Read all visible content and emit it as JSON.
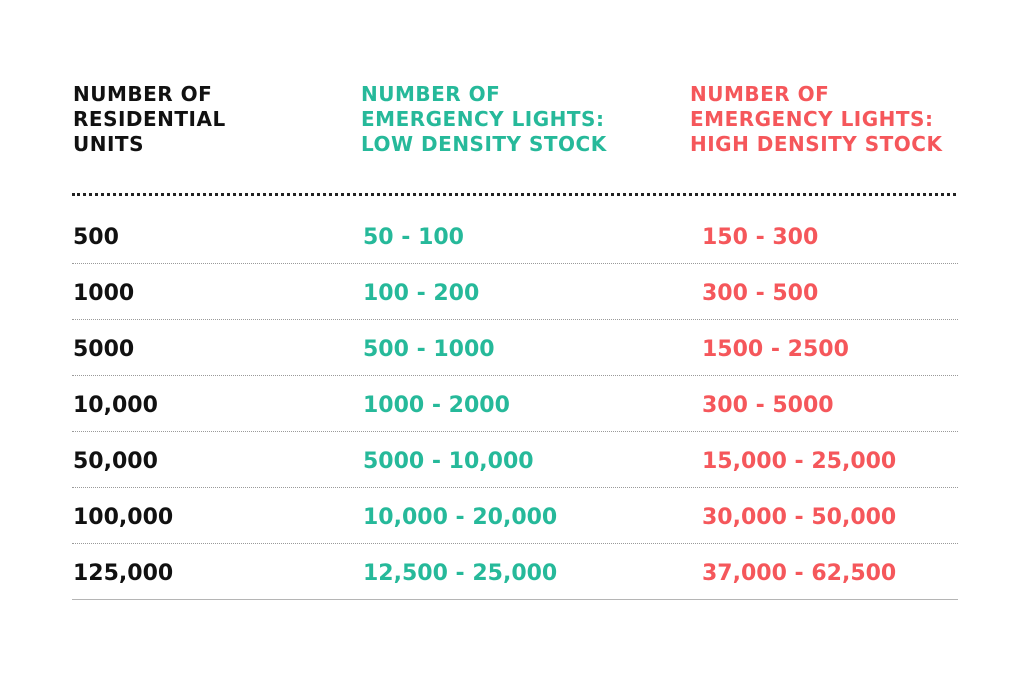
{
  "headers": {
    "units": "NUMBER OF\nRESIDENTIAL\nUNITS",
    "low": "NUMBER OF\nEMERGENCY LIGHTS:\nLOW DENSITY STOCK",
    "high": "NUMBER OF\nEMERGENCY LIGHTS:\nHIGH DENSITY STOCK"
  },
  "rows": [
    {
      "units": "500",
      "low": "50 - 100",
      "high": "150 - 300"
    },
    {
      "units": "1000",
      "low": "100 - 200",
      "high": "300 - 500"
    },
    {
      "units": "5000",
      "low": "500 - 1000",
      "high": "1500 - 2500"
    },
    {
      "units": "10,000",
      "low": "1000 - 2000",
      "high": "300 - 5000"
    },
    {
      "units": "50,000",
      "low": "5000 - 10,000",
      "high": "15,000 - 25,000"
    },
    {
      "units": "100,000",
      "low": "10,000 - 20,000",
      "high": "30,000 - 50,000"
    },
    {
      "units": "125,000",
      "low": "12,500 - 25,000",
      "high": "37,000 - 62,500"
    }
  ],
  "colors": {
    "units": "#111111",
    "low": "#26b99a",
    "high": "#f5575b"
  }
}
